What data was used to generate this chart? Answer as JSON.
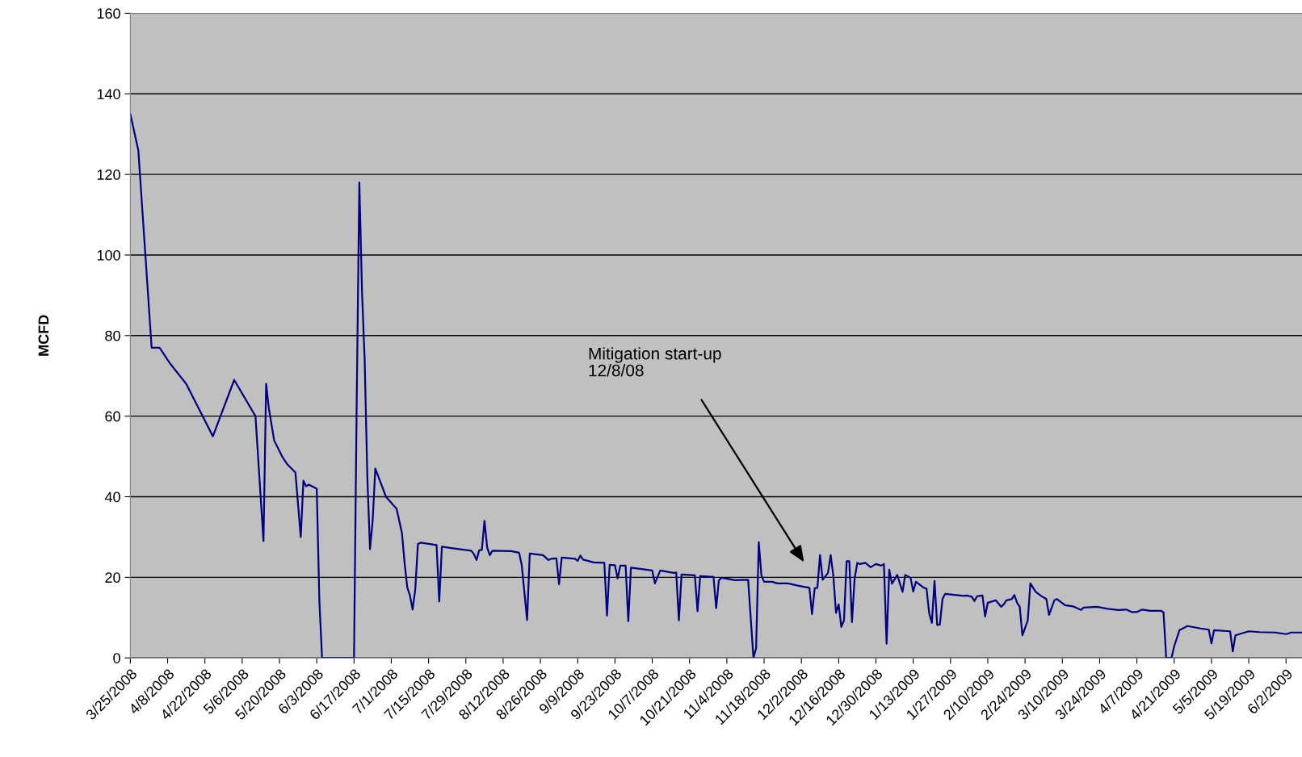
{
  "chart_data": {
    "type": "line",
    "ylabel": "MCFD",
    "grid": "y",
    "marker": "none",
    "line_style": "solid",
    "xlim": [
      "2008-03-25",
      "2009-06-08"
    ],
    "ylim": [
      0,
      160
    ],
    "yticks": [
      0,
      20,
      40,
      60,
      80,
      100,
      120,
      140,
      160
    ],
    "xticks": [
      {
        "value": "2008-03-25",
        "label": "3/25/2008"
      },
      {
        "value": "2008-04-08",
        "label": "4/8/2008"
      },
      {
        "value": "2008-04-22",
        "label": "4/22/2008"
      },
      {
        "value": "2008-05-06",
        "label": "5/6/2008"
      },
      {
        "value": "2008-05-20",
        "label": "5/20/2008"
      },
      {
        "value": "2008-06-03",
        "label": "6/3/2008"
      },
      {
        "value": "2008-06-17",
        "label": "6/17/2008"
      },
      {
        "value": "2008-07-01",
        "label": "7/1/2008"
      },
      {
        "value": "2008-07-15",
        "label": "7/15/2008"
      },
      {
        "value": "2008-07-29",
        "label": "7/29/2008"
      },
      {
        "value": "2008-08-12",
        "label": "8/12/2008"
      },
      {
        "value": "2008-08-26",
        "label": "8/26/2008"
      },
      {
        "value": "2008-09-09",
        "label": "9/9/2008"
      },
      {
        "value": "2008-09-23",
        "label": "9/23/2008"
      },
      {
        "value": "2008-10-07",
        "label": "10/7/2008"
      },
      {
        "value": "2008-10-21",
        "label": "10/21/2008"
      },
      {
        "value": "2008-11-04",
        "label": "11/4/2008"
      },
      {
        "value": "2008-11-18",
        "label": "11/18/2008"
      },
      {
        "value": "2008-12-02",
        "label": "12/2/2008"
      },
      {
        "value": "2008-12-16",
        "label": "12/16/2008"
      },
      {
        "value": "2008-12-30",
        "label": "12/30/2008"
      },
      {
        "value": "2009-01-13",
        "label": "1/13/2009"
      },
      {
        "value": "2009-01-27",
        "label": "1/27/2009"
      },
      {
        "value": "2009-02-10",
        "label": "2/10/2009"
      },
      {
        "value": "2009-02-24",
        "label": "2/24/2009"
      },
      {
        "value": "2009-03-10",
        "label": "3/10/2009"
      },
      {
        "value": "2009-03-24",
        "label": "3/24/2009"
      },
      {
        "value": "2009-04-07",
        "label": "4/7/2009"
      },
      {
        "value": "2009-04-21",
        "label": "4/21/2009"
      },
      {
        "value": "2009-05-05",
        "label": "5/5/2009"
      },
      {
        "value": "2009-05-19",
        "label": "5/19/2009"
      },
      {
        "value": "2009-06-02",
        "label": "6/2/2009"
      }
    ],
    "annotations": [
      "Mitigation start-up\n12/8/08"
    ],
    "series": [
      {
        "color": "#000080",
        "x": [
          "2008-03-25",
          "2008-03-28",
          "2008-04-02",
          "2008-04-05",
          "2008-04-09",
          "2008-04-15",
          "2008-04-25",
          "2008-05-03",
          "2008-05-11",
          "2008-05-14",
          "2008-05-15",
          "2008-05-16",
          "2008-05-18",
          "2008-05-21",
          "2008-05-23",
          "2008-05-26",
          "2008-05-28",
          "2008-05-29",
          "2008-05-30",
          "2008-05-31",
          "2008-06-03",
          "2008-06-04",
          "2008-06-05",
          "2008-06-17",
          "2008-06-18",
          "2008-06-19",
          "2008-06-20",
          "2008-06-21",
          "2008-06-22",
          "2008-06-23",
          "2008-06-24",
          "2008-06-25",
          "2008-06-29",
          "2008-07-03",
          "2008-07-05",
          "2008-07-06",
          "2008-07-07",
          "2008-07-08",
          "2008-07-09",
          "2008-07-10",
          "2008-07-11",
          "2008-07-12",
          "2008-07-18",
          "2008-07-19",
          "2008-07-20",
          "2008-07-24",
          "2008-07-31",
          "2008-08-01",
          "2008-08-02",
          "2008-08-03",
          "2008-08-04",
          "2008-08-05",
          "2008-08-06",
          "2008-08-07",
          "2008-08-08",
          "2008-08-15",
          "2008-08-18",
          "2008-08-19",
          "2008-08-21",
          "2008-08-22",
          "2008-08-27",
          "2008-08-29",
          "2008-08-30",
          "2008-09-01",
          "2008-09-02",
          "2008-09-03",
          "2008-09-08",
          "2008-09-09",
          "2008-09-10",
          "2008-09-11",
          "2008-09-15",
          "2008-09-19",
          "2008-09-20",
          "2008-09-21",
          "2008-09-23",
          "2008-09-24",
          "2008-09-25",
          "2008-09-27",
          "2008-09-28",
          "2008-09-29",
          "2008-10-07",
          "2008-10-08",
          "2008-10-10",
          "2008-10-15",
          "2008-10-16",
          "2008-10-17",
          "2008-10-18",
          "2008-10-23",
          "2008-10-24",
          "2008-10-25",
          "2008-10-30",
          "2008-10-31",
          "2008-11-01",
          "2008-11-02",
          "2008-11-07",
          "2008-11-12",
          "2008-11-14",
          "2008-11-15",
          "2008-11-16",
          "2008-11-17",
          "2008-11-18",
          "2008-11-21",
          "2008-11-23",
          "2008-11-27",
          "2008-12-01",
          "2008-12-05",
          "2008-12-06",
          "2008-12-07",
          "2008-12-08",
          "2008-12-09",
          "2008-12-10",
          "2008-12-12",
          "2008-12-13",
          "2008-12-14",
          "2008-12-15",
          "2008-12-16",
          "2008-12-17",
          "2008-12-18",
          "2008-12-19",
          "2008-12-20",
          "2008-12-21",
          "2008-12-22",
          "2008-12-23",
          "2008-12-24",
          "2008-12-26",
          "2008-12-28",
          "2008-12-30",
          "2009-01-01",
          "2009-01-02",
          "2009-01-03",
          "2009-01-04",
          "2009-01-05",
          "2009-01-07",
          "2009-01-09",
          "2009-01-10",
          "2009-01-12",
          "2009-01-13",
          "2009-01-14",
          "2009-01-17",
          "2009-01-18",
          "2009-01-19",
          "2009-01-20",
          "2009-01-21",
          "2009-01-22",
          "2009-01-23",
          "2009-01-24",
          "2009-01-25",
          "2009-02-01",
          "2009-02-02",
          "2009-02-04",
          "2009-02-05",
          "2009-02-06",
          "2009-02-08",
          "2009-02-09",
          "2009-02-10",
          "2009-02-13",
          "2009-02-15",
          "2009-02-16",
          "2009-02-17",
          "2009-02-19",
          "2009-02-20",
          "2009-02-21",
          "2009-02-22",
          "2009-02-23",
          "2009-02-25",
          "2009-02-26",
          "2009-02-28",
          "2009-03-02",
          "2009-03-04",
          "2009-03-05",
          "2009-03-07",
          "2009-03-08",
          "2009-03-11",
          "2009-03-14",
          "2009-03-17",
          "2009-03-18",
          "2009-03-23",
          "2009-03-27",
          "2009-03-31",
          "2009-04-03",
          "2009-04-05",
          "2009-04-07",
          "2009-04-09",
          "2009-04-12",
          "2009-04-16",
          "2009-04-17",
          "2009-04-18",
          "2009-04-20",
          "2009-04-21",
          "2009-04-23",
          "2009-04-26",
          "2009-05-01",
          "2009-05-04",
          "2009-05-05",
          "2009-05-06",
          "2009-05-12",
          "2009-05-13",
          "2009-05-14",
          "2009-05-16",
          "2009-05-19",
          "2009-05-23",
          "2009-05-29",
          "2009-06-02",
          "2009-06-04",
          "2009-06-08"
        ],
        "values": [
          135,
          126,
          77,
          77,
          73,
          68,
          55,
          69,
          60,
          29,
          68,
          62,
          54,
          50,
          48,
          46,
          30,
          44,
          42.6,
          43,
          42,
          14,
          0,
          0,
          63,
          118,
          91,
          74,
          45,
          27,
          34,
          47,
          40,
          37,
          31,
          23.5,
          17.5,
          15.5,
          12,
          17,
          28.3,
          28.6,
          28,
          14,
          27.6,
          27.2,
          26.6,
          25.8,
          24.3,
          26.7,
          26.8,
          34,
          27.4,
          25.5,
          26.6,
          26.5,
          26.1,
          23,
          9.4,
          25.9,
          25.5,
          24.3,
          24.6,
          24.7,
          18.3,
          24.9,
          24.6,
          24.1,
          25.4,
          24.4,
          23.7,
          23.6,
          10.5,
          23.1,
          23,
          19.7,
          22.9,
          22.9,
          9.1,
          22.4,
          21.7,
          18.5,
          21.7,
          21.1,
          21.2,
          9.3,
          20.7,
          20.5,
          11.6,
          20.3,
          20.1,
          12.4,
          19.2,
          19.9,
          19.3,
          19.4,
          0,
          2.4,
          28.7,
          20.4,
          18.9,
          18.9,
          18.5,
          18.5,
          17.9,
          17.4,
          10.9,
          17.3,
          17.4,
          25.5,
          19.4,
          21.1,
          25.5,
          20.4,
          11.2,
          13.3,
          7.7,
          9.3,
          24,
          24,
          8.9,
          19.7,
          23.6,
          23.3,
          23.6,
          22.5,
          23.3,
          22.9,
          23.3,
          3.5,
          21.9,
          18.4,
          20.6,
          16.4,
          20.6,
          19.9,
          16.5,
          18.9,
          17.4,
          17.2,
          11.1,
          8.7,
          19.1,
          8.2,
          8.3,
          14.6,
          15.9,
          15.4,
          15.5,
          15.2,
          14.1,
          15.3,
          15.5,
          10.3,
          13.7,
          14.3,
          12.7,
          13.3,
          14.3,
          14.6,
          15.6,
          13.7,
          12.7,
          5.6,
          9.3,
          18.5,
          16.4,
          15.4,
          14.6,
          10.7,
          14.3,
          14.6,
          13.1,
          12.8,
          11.9,
          12.5,
          12.7,
          12.2,
          11.9,
          12,
          11.4,
          11.4,
          12,
          11.7,
          11.7,
          11.3,
          0,
          0,
          2.9,
          6.9,
          7.9,
          7.3,
          7,
          3.6,
          6.9,
          6.6,
          1.6,
          5.6,
          6,
          6.6,
          6.4,
          6.3,
          5.9,
          6.3,
          6.3
        ]
      }
    ]
  }
}
